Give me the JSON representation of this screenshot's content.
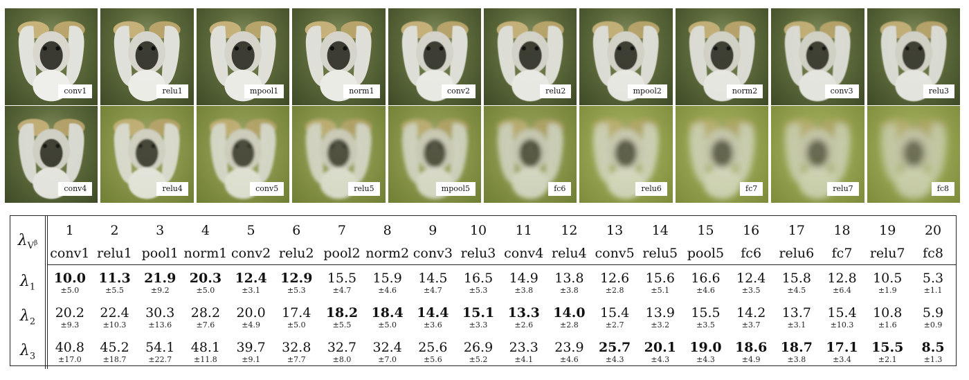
{
  "strip_row1": [
    {
      "label": "conv1"
    },
    {
      "label": "relu1"
    },
    {
      "label": "mpool1"
    },
    {
      "label": "norm1"
    },
    {
      "label": "conv2"
    },
    {
      "label": "relu2"
    },
    {
      "label": "mpool2"
    },
    {
      "label": "norm2"
    },
    {
      "label": "conv3"
    },
    {
      "label": "relu3"
    }
  ],
  "strip_row2": [
    {
      "label": "conv4"
    },
    {
      "label": "relu4"
    },
    {
      "label": "conv5"
    },
    {
      "label": "relu5"
    },
    {
      "label": "mpool5"
    },
    {
      "label": "fc6"
    },
    {
      "label": "relu6"
    },
    {
      "label": "fc7"
    },
    {
      "label": "relu7"
    },
    {
      "label": "fc8"
    }
  ],
  "table": {
    "corner": {
      "lambda": "λ",
      "sub": "V",
      "sup": "β"
    },
    "indices": [
      "1",
      "2",
      "3",
      "4",
      "5",
      "6",
      "7",
      "8",
      "9",
      "10",
      "11",
      "12",
      "13",
      "14",
      "15",
      "16",
      "17",
      "18",
      "19",
      "20"
    ],
    "layers": [
      "conv1",
      "relu1",
      "pool1",
      "norm1",
      "conv2",
      "relu2",
      "pool2",
      "norm2",
      "conv3",
      "relu3",
      "conv4",
      "relu4",
      "conv5",
      "relu5",
      "pool5",
      "fc6",
      "relu6",
      "fc7",
      "relu7",
      "fc8"
    ],
    "rows": [
      {
        "label": "λ",
        "sub": "1",
        "values": [
          "10.0",
          "11.3",
          "21.9",
          "20.3",
          "12.4",
          "12.9",
          "15.5",
          "15.9",
          "14.5",
          "16.5",
          "14.9",
          "13.8",
          "12.6",
          "15.6",
          "16.6",
          "12.4",
          "15.8",
          "12.8",
          "10.5",
          "5.3"
        ],
        "stds": [
          "±5.0",
          "±5.5",
          "±9.2",
          "±5.0",
          "±3.1",
          "±5.3",
          "±4.7",
          "±4.6",
          "±4.7",
          "±5.3",
          "±3.8",
          "±3.8",
          "±2.8",
          "±5.1",
          "±4.6",
          "±3.5",
          "±4.5",
          "±6.4",
          "±1.9",
          "±1.1"
        ],
        "bold": [
          true,
          true,
          true,
          true,
          true,
          true,
          false,
          false,
          false,
          false,
          false,
          false,
          false,
          false,
          false,
          false,
          false,
          false,
          false,
          false
        ]
      },
      {
        "label": "λ",
        "sub": "2",
        "values": [
          "20.2",
          "22.4",
          "30.3",
          "28.2",
          "20.0",
          "17.4",
          "18.2",
          "18.4",
          "14.4",
          "15.1",
          "13.3",
          "14.0",
          "15.4",
          "13.9",
          "15.5",
          "14.2",
          "13.7",
          "15.4",
          "10.8",
          "5.9"
        ],
        "stds": [
          "±9.3",
          "±10.3",
          "±13.6",
          "±7.6",
          "±4.9",
          "±5.0",
          "±5.5",
          "±5.0",
          "±3.6",
          "±3.3",
          "±2.6",
          "±2.8",
          "±2.7",
          "±3.2",
          "±3.5",
          "±3.7",
          "±3.1",
          "±10.3",
          "±1.6",
          "±0.9"
        ],
        "bold": [
          false,
          false,
          false,
          false,
          false,
          false,
          true,
          true,
          true,
          true,
          true,
          true,
          false,
          false,
          false,
          false,
          false,
          false,
          false,
          false
        ]
      },
      {
        "label": "λ",
        "sub": "3",
        "values": [
          "40.8",
          "45.2",
          "54.1",
          "48.1",
          "39.7",
          "32.8",
          "32.7",
          "32.4",
          "25.6",
          "26.9",
          "23.3",
          "23.9",
          "25.7",
          "20.1",
          "19.0",
          "18.6",
          "18.7",
          "17.1",
          "15.5",
          "8.5"
        ],
        "stds": [
          "±17.0",
          "±18.7",
          "±22.7",
          "±11.8",
          "±9.1",
          "±7.7",
          "±8.0",
          "±7.0",
          "±5.6",
          "±5.2",
          "±4.1",
          "±4.6",
          "±4.3",
          "±4.3",
          "±4.3",
          "±4.9",
          "±3.8",
          "±3.4",
          "±2.1",
          "±1.3"
        ],
        "bold": [
          false,
          false,
          false,
          false,
          false,
          false,
          false,
          false,
          false,
          false,
          false,
          false,
          true,
          true,
          true,
          true,
          true,
          true,
          true,
          true
        ]
      }
    ]
  }
}
